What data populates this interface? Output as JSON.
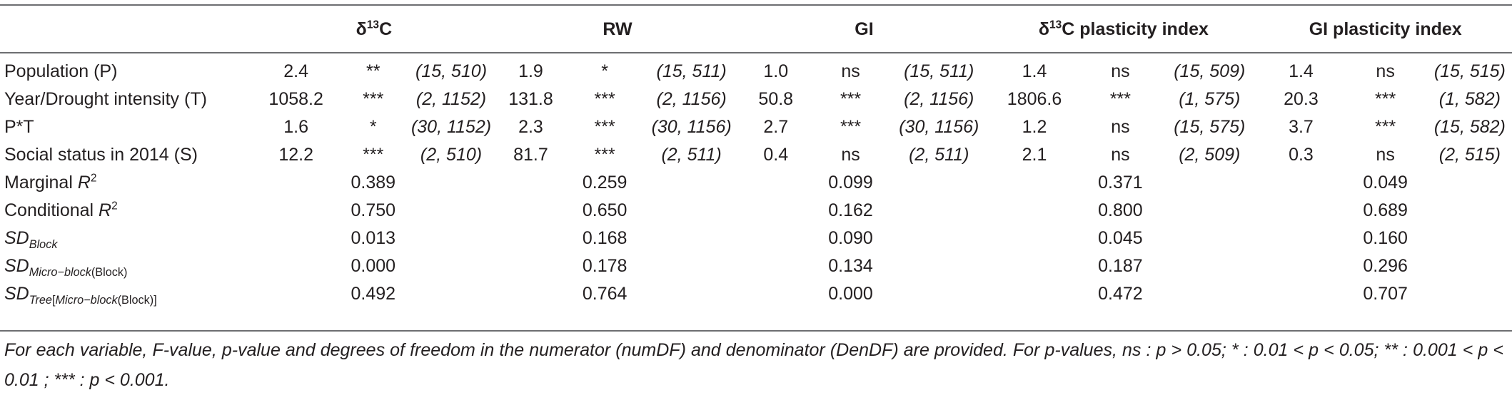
{
  "header": {
    "col1_label": "C",
    "col1_prefix": "δ",
    "col1_sup": "13",
    "col2_label": "RW",
    "col3_label": "GI",
    "col4_prefix": "δ",
    "col4_sup": "13",
    "col4_label": "C plasticity index",
    "col5_label": "GI plasticity index"
  },
  "rows": [
    {
      "label": "Population (P)",
      "cells": [
        "2.4",
        "**",
        "(15, 510)",
        "1.9",
        "*",
        "(15, 511)",
        "1.0",
        "ns",
        "(15, 511)",
        "1.4",
        "ns",
        "(15, 509)",
        "1.4",
        "ns",
        "(15, 515)"
      ]
    },
    {
      "label": "Year/Drought intensity (T)",
      "cells": [
        "1058.2",
        "***",
        "(2, 1152)",
        "131.8",
        "***",
        "(2, 1156)",
        "50.8",
        "***",
        "(2, 1156)",
        "1806.6",
        "***",
        "(1, 575)",
        "20.3",
        "***",
        "(1, 582)"
      ]
    },
    {
      "label": "P*T",
      "cells": [
        "1.6",
        "*",
        "(30, 1152)",
        "2.3",
        "***",
        "(30, 1156)",
        "2.7",
        "***",
        "(30, 1156)",
        "1.2",
        "ns",
        "(15, 575)",
        "3.7",
        "***",
        "(15, 582)"
      ]
    },
    {
      "label": "Social status in 2014 (S)",
      "cells": [
        "12.2",
        "***",
        "(2, 510)",
        "81.7",
        "***",
        "(2, 511)",
        "0.4",
        "ns",
        "(2, 511)",
        "2.1",
        "ns",
        "(2, 509)",
        "0.3",
        "ns",
        "(2, 515)"
      ]
    }
  ],
  "summary": {
    "marginal": {
      "label": "Marginal ",
      "sym": "R",
      "sup": "2",
      "values": [
        "0.389",
        "0.259",
        "0.099",
        "0.371",
        "0.049"
      ]
    },
    "conditional": {
      "label": "Conditional ",
      "sym": "R",
      "sup": "2",
      "values": [
        "0.750",
        "0.650",
        "0.162",
        "0.800",
        "0.689"
      ]
    },
    "sd_block": {
      "sym": "SD",
      "sub": "Block",
      "values": [
        "0.013",
        "0.168",
        "0.090",
        "0.045",
        "0.160"
      ]
    },
    "sd_micro": {
      "sym": "SD",
      "sub_a": "Micro−block",
      "sub_b": "(Block)",
      "values": [
        "0.000",
        "0.178",
        "0.134",
        "0.187",
        "0.296"
      ]
    },
    "sd_tree": {
      "sym": "SD",
      "sub_a": "Tree",
      "sub_open": "[",
      "sub_b": "Micro−block",
      "sub_c": "(Block)",
      "sub_close": "]",
      "values": [
        "0.492",
        "0.764",
        "0.000",
        "0.472",
        "0.707"
      ]
    }
  },
  "footnote": "For each variable, F-value, p-value and degrees of freedom in the numerator (numDF) and denominator (DenDF) are provided. For p-values, ns : p > 0.05; * : 0.01 < p < 0.05; ** : 0.001 < p < 0.01 ; *** : p < 0.001."
}
